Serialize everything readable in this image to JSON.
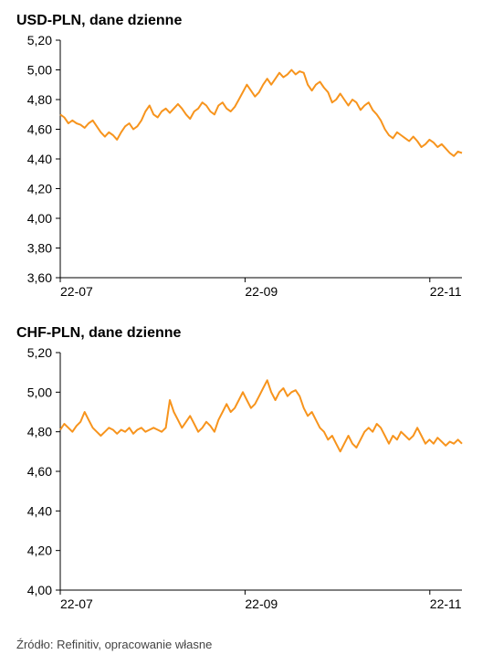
{
  "source_line": "Źródło: Refinitiv, opracowanie własne",
  "charts": [
    {
      "title": "USD-PLN, dane dzienne",
      "type": "line",
      "line_color": "#f7941d",
      "line_width": 2,
      "background_color": "#ffffff",
      "border_color": "#000000",
      "title_fontsize": 16,
      "label_fontsize": 14,
      "x_range": [
        0,
        100
      ],
      "ylim": [
        3.6,
        5.2
      ],
      "ytick_step": 0.2,
      "yticks": [
        "3,60",
        "3,80",
        "4,00",
        "4,20",
        "4,40",
        "4,60",
        "4,80",
        "5,00",
        "5,20"
      ],
      "xticks": [
        {
          "pos": 0,
          "label": "22-07"
        },
        {
          "pos": 46,
          "label": "22-09"
        },
        {
          "pos": 92,
          "label": "22-11"
        }
      ],
      "series": [
        4.7,
        4.68,
        4.64,
        4.66,
        4.64,
        4.63,
        4.61,
        4.64,
        4.66,
        4.62,
        4.58,
        4.55,
        4.58,
        4.56,
        4.53,
        4.58,
        4.62,
        4.64,
        4.6,
        4.62,
        4.66,
        4.72,
        4.76,
        4.7,
        4.68,
        4.72,
        4.74,
        4.71,
        4.74,
        4.77,
        4.74,
        4.7,
        4.67,
        4.72,
        4.74,
        4.78,
        4.76,
        4.72,
        4.7,
        4.76,
        4.78,
        4.74,
        4.72,
        4.75,
        4.8,
        4.85,
        4.9,
        4.86,
        4.82,
        4.85,
        4.9,
        4.94,
        4.9,
        4.94,
        4.98,
        4.95,
        4.97,
        5.0,
        4.97,
        4.99,
        4.98,
        4.9,
        4.86,
        4.9,
        4.92,
        4.88,
        4.85,
        4.78,
        4.8,
        4.84,
        4.8,
        4.76,
        4.8,
        4.78,
        4.73,
        4.76,
        4.78,
        4.73,
        4.7,
        4.66,
        4.6,
        4.56,
        4.54,
        4.58,
        4.56,
        4.54,
        4.52,
        4.55,
        4.52,
        4.48,
        4.5,
        4.53,
        4.51,
        4.48,
        4.5,
        4.47,
        4.44,
        4.42,
        4.45,
        4.44
      ]
    },
    {
      "title": "CHF-PLN, dane dzienne",
      "type": "line",
      "line_color": "#f7941d",
      "line_width": 2,
      "background_color": "#ffffff",
      "border_color": "#000000",
      "title_fontsize": 16,
      "label_fontsize": 14,
      "x_range": [
        0,
        100
      ],
      "ylim": [
        4.0,
        5.2
      ],
      "ytick_step": 0.2,
      "yticks": [
        "4,00",
        "4,20",
        "4,40",
        "4,60",
        "4,80",
        "5,00",
        "5,20"
      ],
      "xticks": [
        {
          "pos": 0,
          "label": "22-07"
        },
        {
          "pos": 46,
          "label": "22-09"
        },
        {
          "pos": 92,
          "label": "22-11"
        }
      ],
      "series": [
        4.81,
        4.84,
        4.82,
        4.8,
        4.83,
        4.85,
        4.9,
        4.86,
        4.82,
        4.8,
        4.78,
        4.8,
        4.82,
        4.81,
        4.79,
        4.81,
        4.8,
        4.82,
        4.79,
        4.81,
        4.82,
        4.8,
        4.81,
        4.82,
        4.81,
        4.8,
        4.82,
        4.96,
        4.9,
        4.86,
        4.82,
        4.85,
        4.88,
        4.84,
        4.8,
        4.82,
        4.85,
        4.83,
        4.8,
        4.86,
        4.9,
        4.94,
        4.9,
        4.92,
        4.96,
        5.0,
        4.96,
        4.92,
        4.94,
        4.98,
        5.02,
        5.06,
        5.0,
        4.96,
        5.0,
        5.02,
        4.98,
        5.0,
        5.01,
        4.98,
        4.92,
        4.88,
        4.9,
        4.86,
        4.82,
        4.8,
        4.76,
        4.78,
        4.74,
        4.7,
        4.74,
        4.78,
        4.74,
        4.72,
        4.76,
        4.8,
        4.82,
        4.8,
        4.84,
        4.82,
        4.78,
        4.74,
        4.78,
        4.76,
        4.8,
        4.78,
        4.76,
        4.78,
        4.82,
        4.78,
        4.74,
        4.76,
        4.74,
        4.77,
        4.75,
        4.73,
        4.75,
        4.74,
        4.76,
        4.74
      ]
    }
  ]
}
